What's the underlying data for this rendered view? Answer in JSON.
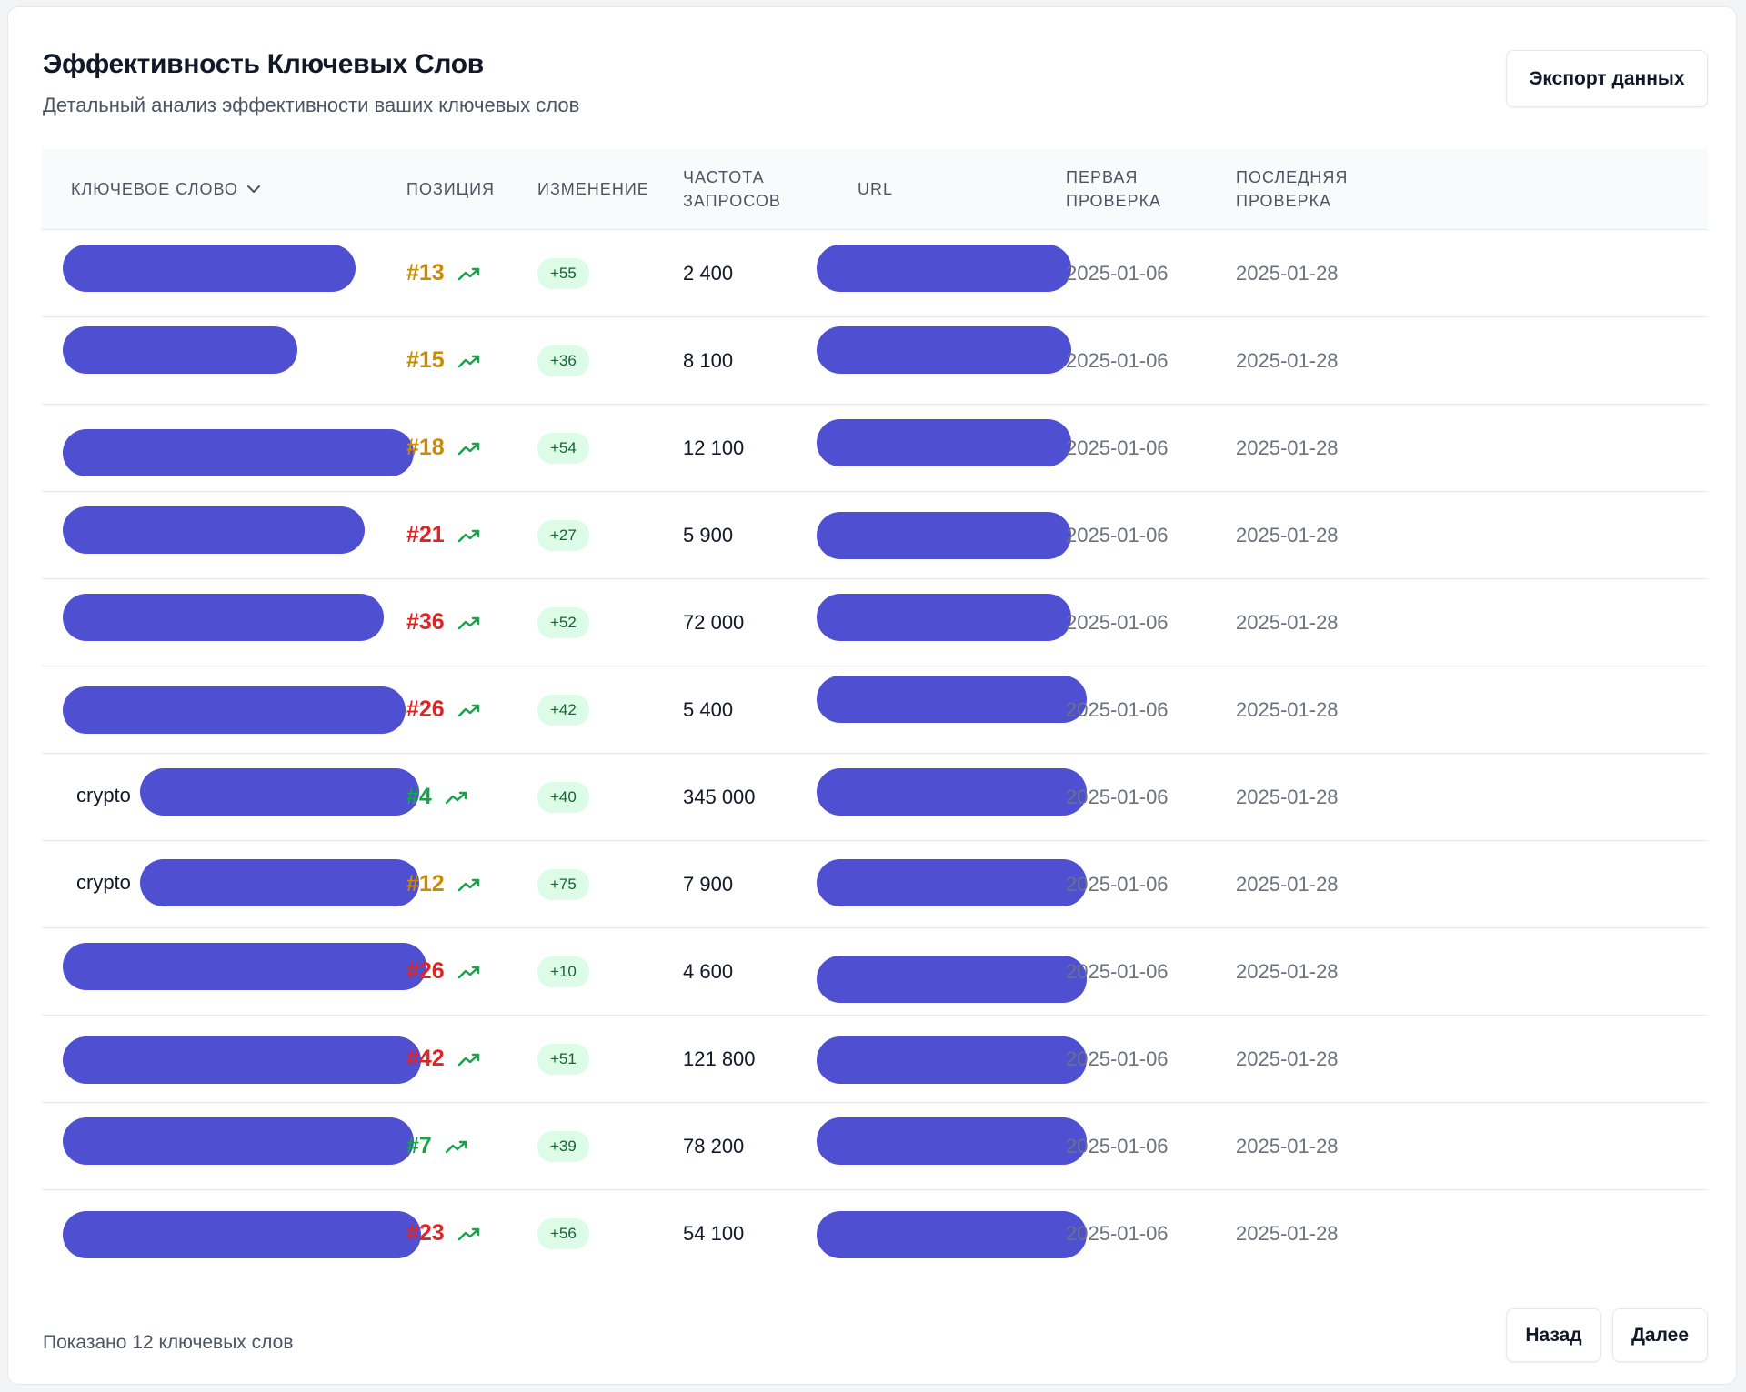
{
  "header": {
    "title": "Эффективность Ключевых Слов",
    "subtitle": "Детальный анализ эффективности ваших ключевых слов",
    "export_label": "Экспорт данных"
  },
  "table": {
    "columns": {
      "keyword": "КЛЮЧЕВОЕ СЛОВО",
      "position": "ПОЗИЦИЯ",
      "change": "ИЗМЕНЕНИЕ",
      "frequency": "ЧАСТОТА ЗАПРОСОВ",
      "url": "URL",
      "first_check": "ПЕРВАЯ ПРОВЕРКА",
      "last_check": "ПОСЛЕДНЯЯ ПРОВЕРКА"
    },
    "rows": [
      {
        "keyword_prefix": "",
        "position": "#13",
        "position_color": "#ca8a04",
        "change": "+55",
        "frequency": "2 400",
        "first_check": "2025-01-06",
        "last_check": "2025-01-28"
      },
      {
        "keyword_prefix": "",
        "position": "#15",
        "position_color": "#ca8a04",
        "change": "+36",
        "frequency": "8 100",
        "first_check": "2025-01-06",
        "last_check": "2025-01-28"
      },
      {
        "keyword_prefix": "",
        "position": "#18",
        "position_color": "#ca8a04",
        "change": "+54",
        "frequency": "12 100",
        "first_check": "2025-01-06",
        "last_check": "2025-01-28"
      },
      {
        "keyword_prefix": "",
        "position": "#21",
        "position_color": "#dc2626",
        "change": "+27",
        "frequency": "5 900",
        "first_check": "2025-01-06",
        "last_check": "2025-01-28"
      },
      {
        "keyword_prefix": "",
        "position": "#36",
        "position_color": "#dc2626",
        "change": "+52",
        "frequency": "72 000",
        "first_check": "2025-01-06",
        "last_check": "2025-01-28"
      },
      {
        "keyword_prefix": "",
        "position": "#26",
        "position_color": "#dc2626",
        "change": "+42",
        "frequency": "5 400",
        "first_check": "2025-01-06",
        "last_check": "2025-01-28"
      },
      {
        "keyword_prefix": "crypto",
        "position": "#4",
        "position_color": "#16a34a",
        "change": "+40",
        "frequency": "345 000",
        "first_check": "2025-01-06",
        "last_check": "2025-01-28"
      },
      {
        "keyword_prefix": "crypto",
        "position": "#12",
        "position_color": "#ca8a04",
        "change": "+75",
        "frequency": "7 900",
        "first_check": "2025-01-06",
        "last_check": "2025-01-28"
      },
      {
        "keyword_prefix": "",
        "position": "#26",
        "position_color": "#dc2626",
        "change": "+10",
        "frequency": "4 600",
        "first_check": "2025-01-06",
        "last_check": "2025-01-28"
      },
      {
        "keyword_prefix": "",
        "position": "#42",
        "position_color": "#dc2626",
        "change": "+51",
        "frequency": "121 800",
        "first_check": "2025-01-06",
        "last_check": "2025-01-28"
      },
      {
        "keyword_prefix": "",
        "position": "#7",
        "position_color": "#16a34a",
        "change": "+39",
        "frequency": "78 200",
        "first_check": "2025-01-06",
        "last_check": "2025-01-28"
      },
      {
        "keyword_prefix": "",
        "position": "#23",
        "position_color": "#dc2626",
        "change": "+56",
        "frequency": "54 100",
        "first_check": "2025-01-06",
        "last_check": "2025-01-28"
      }
    ]
  },
  "footer": {
    "summary": "Показано 12 ключевых слов",
    "back_label": "Назад",
    "next_label": "Далее"
  },
  "colors": {
    "redaction": "#4f4fd2",
    "trend_up": "#16a34a",
    "badge_bg": "#dcfce7",
    "badge_text": "#166534"
  },
  "icons": {
    "sort": "chevron-down-icon",
    "trend": "trending-up-icon"
  }
}
